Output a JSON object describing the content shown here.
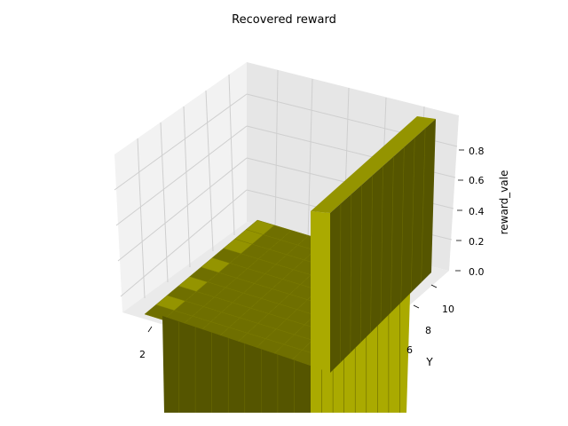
{
  "chart_data": {
    "type": "surface3d",
    "title": "Recovered reward",
    "xlabel": "",
    "ylabel": "Y",
    "zlabel": "reward_vale",
    "x_ticks_visible": [
      "2"
    ],
    "y_ticks_visible": [
      "6",
      "8",
      "10"
    ],
    "z_ticks": [
      "0.0",
      "0.2",
      "0.4",
      "0.6",
      "0.8"
    ],
    "zlim": [
      0,
      1
    ],
    "grid": true,
    "surface_color_top": "#aaaa00",
    "surface_color_shaded": "#555500",
    "surface_color_lit": "#949400",
    "grid_size": [
      10,
      10
    ],
    "values_note_x_last_row": 1.0,
    "values": [
      [
        0,
        0,
        0,
        0,
        0,
        0,
        0,
        0,
        0,
        0
      ],
      [
        0,
        0,
        0,
        0,
        0,
        0,
        0,
        0,
        0,
        0
      ],
      [
        0,
        0,
        0,
        0,
        0,
        0,
        0,
        0,
        0,
        0
      ],
      [
        0,
        0,
        0,
        0,
        0,
        0,
        0,
        0,
        0,
        0
      ],
      [
        0,
        0,
        0,
        0,
        0,
        0,
        0,
        0,
        0,
        0
      ],
      [
        0,
        0,
        0,
        0,
        0,
        0,
        0,
        0,
        0,
        0
      ],
      [
        0,
        0,
        0,
        0,
        0,
        0,
        0,
        0,
        0,
        0
      ],
      [
        0,
        0,
        0,
        0,
        0,
        0,
        0,
        0,
        0,
        0
      ],
      [
        0,
        0,
        0,
        0,
        0,
        0,
        0,
        0,
        0,
        0
      ],
      [
        1,
        1,
        1,
        1,
        1,
        1,
        1,
        1,
        1,
        1
      ]
    ]
  }
}
